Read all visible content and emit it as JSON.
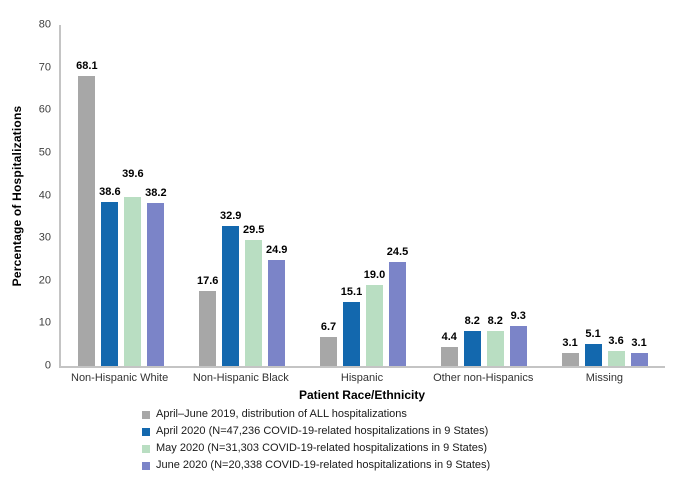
{
  "chart_data": {
    "type": "bar",
    "title": "",
    "xlabel": "Patient Race/Ethnicity",
    "ylabel": "Percentage of Hospitalizations",
    "ylim": [
      0,
      80
    ],
    "ytick_step": 10,
    "grid": false,
    "legend_position": "bottom-left",
    "categories": [
      "Non-Hispanic White",
      "Non-Hispanic Black",
      "Hispanic",
      "Other non-Hispanics",
      "Missing"
    ],
    "series": [
      {
        "name": "April–June 2019, distribution of ALL hospitalizations",
        "color": "#A7A7A7",
        "values": [
          68.1,
          17.6,
          6.7,
          4.4,
          3.1
        ]
      },
      {
        "name": "April 2020 (N=47,236 COVID-19-related hospitalizations in 9 States)",
        "color": "#1368AE",
        "values": [
          38.6,
          32.9,
          15.1,
          8.2,
          5.1
        ]
      },
      {
        "name": "May 2020 (N=31,303 COVID-19-related hospitalizations in 9 States)",
        "color": "#B9DEC2",
        "values": [
          39.6,
          29.5,
          19.0,
          8.2,
          3.6
        ]
      },
      {
        "name": "June 2020 (N=20,338 COVID-19-related hospitalizations in 9 States)",
        "color": "#7B84C8",
        "values": [
          38.2,
          24.9,
          24.5,
          9.3,
          3.1
        ]
      }
    ],
    "colors": {
      "axis_line": "#C4C4C4",
      "tick_text": "#3F3F3F",
      "label_text": "#000000"
    }
  }
}
